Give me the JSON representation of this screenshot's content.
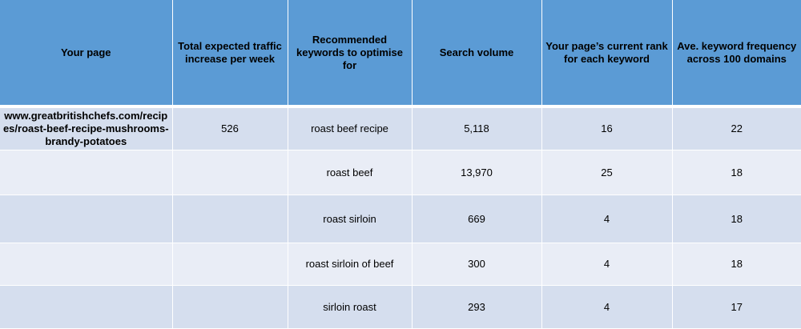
{
  "headers": {
    "page": "Your page",
    "traffic": "Total expected traffic increase per week",
    "keywords": "Recommended keywords to optimise for",
    "volume": "Search volume",
    "rank": "Your page’s current rank for each keyword",
    "frequency": "Ave. keyword frequency across 100 domains"
  },
  "rows": [
    {
      "page": "www.greatbritishchefs.com/recipes/roast-beef-recipe-mushrooms-brandy-potatoes",
      "traffic": "526",
      "keyword": "roast beef recipe",
      "volume": "5,118",
      "rank": "16",
      "frequency": "22"
    },
    {
      "page": "",
      "traffic": "",
      "keyword": "roast beef",
      "volume": "13,970",
      "rank": "25",
      "frequency": "18"
    },
    {
      "page": "",
      "traffic": "",
      "keyword": "roast sirloin",
      "volume": "669",
      "rank": "4",
      "frequency": "18"
    },
    {
      "page": "",
      "traffic": "",
      "keyword": "roast sirloin of beef",
      "volume": "300",
      "rank": "4",
      "frequency": "18"
    },
    {
      "page": "",
      "traffic": "",
      "keyword": "sirloin roast",
      "volume": "293",
      "rank": "4",
      "frequency": "17"
    }
  ]
}
